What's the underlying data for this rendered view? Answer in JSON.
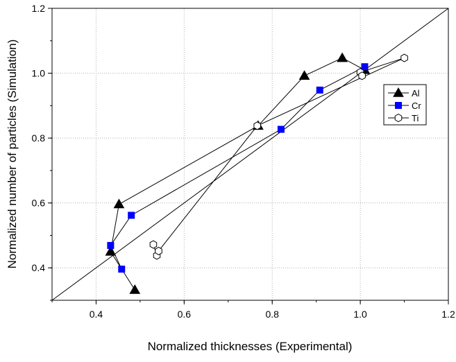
{
  "chart_data": {
    "type": "scatter",
    "title": "",
    "xlabel": "Normalized thicknesses (Experimental)",
    "ylabel": "Normalized number of particles (Simulation)",
    "xlim": [
      0.3,
      1.2
    ],
    "ylim": [
      0.3,
      1.2
    ],
    "xticks": [
      "0.4",
      "0.6",
      "0.8",
      "1.0",
      "1.2"
    ],
    "yticks": [
      "0.4",
      "0.6",
      "0.8",
      "1.0",
      "1.2"
    ],
    "grid": true,
    "reference_line": {
      "x": [
        0.3,
        1.2
      ],
      "y": [
        0.3,
        1.2
      ]
    },
    "legend_position": "right",
    "series": [
      {
        "name": "Al",
        "marker": "filled-triangle",
        "color": "#000000",
        "x": [
          0.488,
          0.433,
          0.452,
          0.768,
          0.873,
          0.959,
          1.01
        ],
        "y": [
          0.332,
          0.45,
          0.596,
          0.838,
          0.992,
          1.047,
          1.01
        ]
      },
      {
        "name": "Cr",
        "marker": "filled-square",
        "color": "#0000ff",
        "x": [
          0.458,
          0.433,
          0.48,
          0.82,
          0.908,
          1.01
        ],
        "y": [
          0.396,
          0.469,
          0.562,
          0.827,
          0.948,
          1.02
        ]
      },
      {
        "name": "Ti",
        "marker": "open-hexagon",
        "color": "#000000",
        "x": [
          0.53,
          0.538,
          0.542,
          0.766,
          1.1,
          1.0,
          1.004
        ],
        "y": [
          0.472,
          0.438,
          0.452,
          0.838,
          1.047,
          1.003,
          0.992
        ]
      }
    ]
  }
}
